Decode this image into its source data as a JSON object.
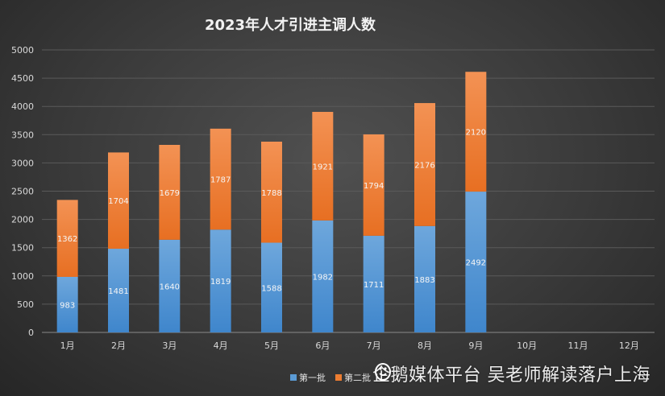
{
  "chart_data": {
    "type": "bar",
    "stacked": true,
    "title": "2023年人才引进主调人数",
    "categories": [
      "1月",
      "2月",
      "3月",
      "4月",
      "5月",
      "6月",
      "7月",
      "8月",
      "9月",
      "10月",
      "11月",
      "12月"
    ],
    "series": [
      {
        "name": "第一批",
        "color": "#5b9bd5",
        "values": [
          983,
          1481,
          1640,
          1819,
          1588,
          1982,
          1711,
          1883,
          2492,
          null,
          null,
          null
        ]
      },
      {
        "name": "第二批",
        "color": "#ed7d31",
        "values": [
          1362,
          1704,
          1679,
          1787,
          1788,
          1921,
          1794,
          2176,
          2120,
          null,
          null,
          null
        ]
      }
    ],
    "ylim": [
      0,
      5000
    ],
    "yticks": [
      0,
      500,
      1000,
      1500,
      2000,
      2500,
      3000,
      3500,
      4000,
      4500,
      5000
    ],
    "grid": true,
    "legend": "bottom",
    "xlabel": "",
    "ylabel": ""
  },
  "watermark": {
    "text": "企鹅媒体平台 吴老师解读落户上海",
    "icon": "penguin-icon"
  }
}
